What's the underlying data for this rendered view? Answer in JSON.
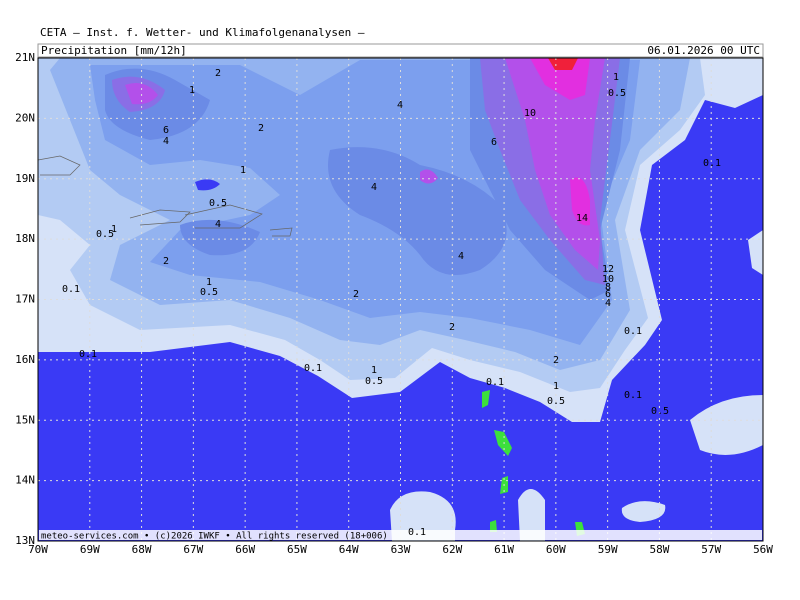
{
  "header": {
    "title": "CETA — Inst. f. Wetter- und Klimafolgenanalysen —"
  },
  "panel": {
    "label": "Precipitation [mm/12h]",
    "date": "06.01.2026 00 UTC"
  },
  "axes": {
    "lat_ticks": [
      "21N",
      "20N",
      "19N",
      "18N",
      "17N",
      "16N",
      "15N",
      "14N",
      "13N"
    ],
    "lon_ticks": [
      "70W",
      "69W",
      "68W",
      "67W",
      "66W",
      "65W",
      "64W",
      "63W",
      "62W",
      "61W",
      "60W",
      "59W",
      "58W",
      "57W",
      "56W"
    ]
  },
  "contour_labels": [
    "2",
    "1",
    "6",
    "4",
    "2",
    "4",
    "10",
    "6",
    "1",
    "0.5",
    "0.1",
    "1",
    "4",
    "0.5",
    "14",
    "4",
    "0.5",
    "1",
    "2",
    "4",
    "12",
    "10",
    "8",
    "6",
    "4",
    "1",
    "0.5",
    "0.1",
    "2",
    "2",
    "0.1",
    "0.1",
    "2",
    "0.1",
    "1",
    "0.5",
    "0.1",
    "1",
    "0.5",
    "0.1",
    "0.5",
    "0.1"
  ],
  "footer": "meteo-services.com • (c)2026 IWKF • All rights reserved (18+006)"
}
